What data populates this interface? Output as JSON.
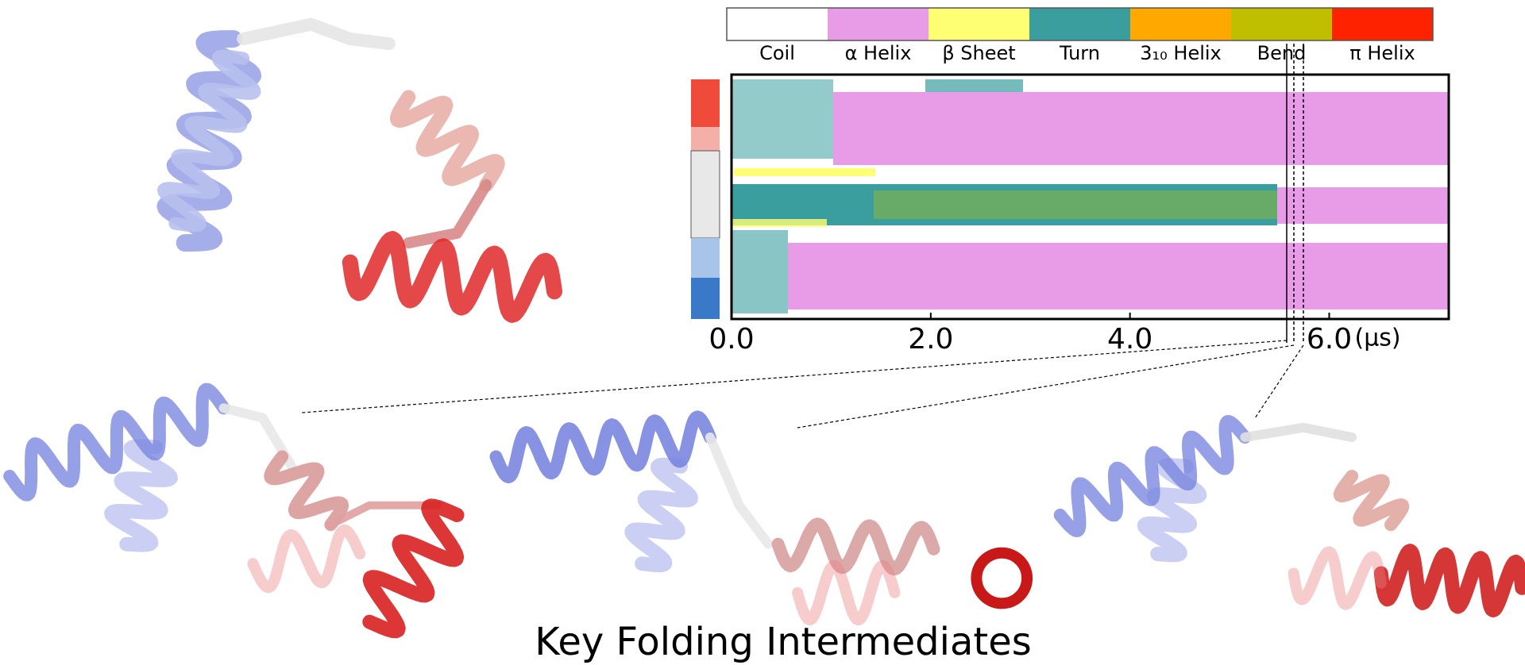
{
  "legend": {
    "items": [
      {
        "label": "Coil",
        "color": "#ffffff"
      },
      {
        "label": "α Helix",
        "color": "#e89be6"
      },
      {
        "label": "β Sheet",
        "color": "#ffff73"
      },
      {
        "label": "Turn",
        "color": "#3a9e9e"
      },
      {
        "label": "3₁₀ Helix",
        "color": "#ffa800"
      },
      {
        "label": "Bend",
        "color": "#bfbf00"
      },
      {
        "label": "π Helix",
        "color": "#ff2200"
      }
    ]
  },
  "timeline": {
    "xlim": [
      0,
      7.2
    ],
    "xticks": [
      {
        "value": 0,
        "label": "0.0"
      },
      {
        "value": 2,
        "label": "2.0"
      },
      {
        "value": 4,
        "label": "4.0"
      },
      {
        "value": 6,
        "label": "6.0"
      }
    ],
    "unit": "(μs)"
  },
  "caption": "Key Folding Intermediates"
}
